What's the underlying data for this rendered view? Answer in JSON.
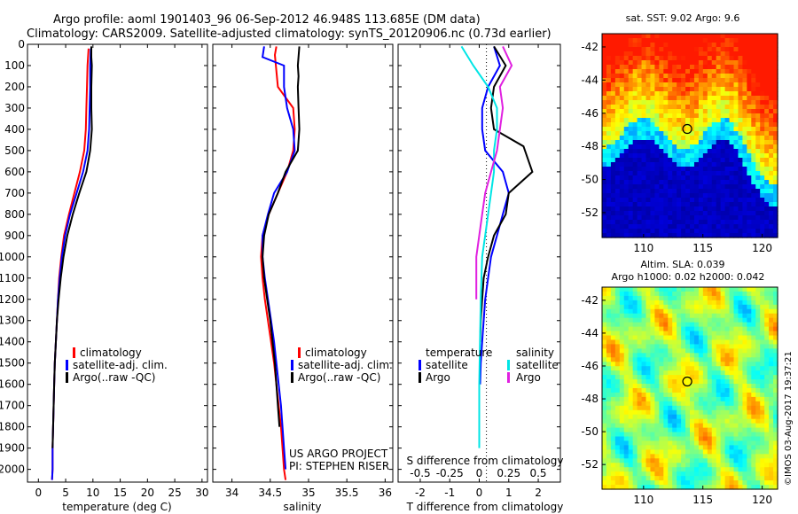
{
  "figure": {
    "title_line1": "Argo profile: aoml 1901403_96 06-Sep-2012 46.948S 113.685E (DM data)",
    "title_line2": "Climatology: CARS2009. Satellite-adjusted climatology: synTS_20120906.nc (0.73d earlier)",
    "credit": "US ARGO PROJECT",
    "pi": "PI: STEPHEN RISER",
    "stamp": "©IMOS 03-Aug-2017 19:37:21"
  },
  "colors": {
    "climatology": "#ff0000",
    "satellite_adj": "#0000ff",
    "argo": "#000000",
    "sal_satellite": "#00e5e5",
    "sal_argo": "#e020e0"
  },
  "chart_data": [
    {
      "id": "temperature",
      "type": "line",
      "xlabel": "temperature (deg C)",
      "xlim": [
        -2,
        31
      ],
      "xticks": [
        0,
        5,
        10,
        15,
        20,
        25,
        30
      ],
      "ylim": [
        0,
        2060
      ],
      "yticks": [
        0,
        100,
        200,
        300,
        400,
        500,
        600,
        700,
        800,
        900,
        1000,
        1100,
        1200,
        1300,
        1400,
        1500,
        1600,
        1700,
        1800,
        1900,
        2000
      ],
      "legend": [
        "climatology",
        "satellite-adj. clim.",
        "Argo(..raw -QC)"
      ],
      "series": [
        {
          "name": "climatology",
          "color": "#ff0000",
          "x": [
            9.2,
            9.0,
            8.9,
            8.8,
            8.7,
            8.4,
            7.6,
            6.6,
            5.6,
            4.7,
            4.2,
            3.8,
            3.6,
            3.4,
            3.2,
            3.0,
            2.9,
            2.8,
            2.7,
            2.6,
            2.6,
            2.5
          ],
          "y": [
            20,
            100,
            200,
            300,
            400,
            500,
            600,
            700,
            800,
            900,
            1000,
            1100,
            1200,
            1300,
            1400,
            1500,
            1600,
            1700,
            1800,
            1900,
            2000,
            2050
          ]
        },
        {
          "name": "satellite-adj. clim.",
          "color": "#0000ff",
          "x": [
            9.6,
            9.5,
            9.5,
            9.4,
            9.3,
            9.0,
            8.2,
            7.0,
            5.8,
            4.9,
            4.3,
            3.9,
            3.6,
            3.4,
            3.2,
            3.0,
            2.9,
            2.8,
            2.7,
            2.6,
            2.6,
            2.5
          ],
          "y": [
            20,
            100,
            200,
            300,
            400,
            500,
            600,
            700,
            800,
            900,
            1000,
            1100,
            1200,
            1300,
            1400,
            1500,
            1600,
            1700,
            1800,
            1900,
            2000,
            2050
          ]
        },
        {
          "name": "Argo(..raw -QC)",
          "color": "#000000",
          "x": [
            9.7,
            9.7,
            9.8,
            9.7,
            9.7,
            9.8,
            9.5,
            8.8,
            7.5,
            6.3,
            5.3,
            4.6,
            4.1,
            3.7,
            3.4,
            3.2,
            3.0,
            2.9,
            2.8,
            2.7,
            2.6
          ],
          "y": [
            10,
            60,
            100,
            200,
            300,
            400,
            500,
            600,
            700,
            800,
            900,
            1000,
            1100,
            1200,
            1300,
            1400,
            1500,
            1600,
            1700,
            1800,
            1900
          ]
        }
      ]
    },
    {
      "id": "salinity",
      "type": "line",
      "xlabel": "salinity",
      "xlim": [
        33.75,
        36.1
      ],
      "xticks": [
        34,
        34.5,
        35,
        35.5,
        36
      ],
      "ylim": [
        0,
        2060
      ],
      "legend": [
        "climatology",
        "satellite-adj. clim.",
        "Argo(..raw -QC)"
      ],
      "series": [
        {
          "name": "climatology",
          "color": "#ff0000",
          "x": [
            34.58,
            34.56,
            34.6,
            34.8,
            34.82,
            34.8,
            34.72,
            34.6,
            34.48,
            34.4,
            34.38,
            34.4,
            34.43,
            34.47,
            34.51,
            34.55,
            34.58,
            34.61,
            34.64,
            34.66,
            34.68,
            34.7
          ],
          "y": [
            10,
            50,
            200,
            300,
            400,
            500,
            600,
            700,
            800,
            900,
            1000,
            1100,
            1200,
            1300,
            1400,
            1500,
            1600,
            1700,
            1800,
            1900,
            2000,
            2050
          ]
        },
        {
          "name": "satellite-adj. clim.",
          "color": "#0000ff",
          "x": [
            34.42,
            34.4,
            34.68,
            34.68,
            34.72,
            34.8,
            34.82,
            34.72,
            34.55,
            34.47,
            34.4,
            34.4,
            34.43,
            34.47,
            34.51,
            34.55,
            34.58,
            34.61,
            34.64,
            34.66,
            34.68,
            34.7
          ],
          "y": [
            10,
            60,
            100,
            200,
            300,
            400,
            500,
            600,
            700,
            800,
            900,
            1000,
            1100,
            1200,
            1300,
            1400,
            1500,
            1600,
            1700,
            1800,
            1900,
            2000
          ]
        },
        {
          "name": "Argo(..raw -QC)",
          "color": "#000000",
          "x": [
            34.88,
            34.86,
            34.87,
            34.86,
            34.87,
            34.88,
            34.86,
            34.7,
            34.6,
            34.48,
            34.42,
            34.4,
            34.42,
            34.46,
            34.5,
            34.53,
            34.56,
            34.58,
            34.6,
            34.62
          ],
          "y": [
            10,
            100,
            150,
            200,
            300,
            400,
            500,
            600,
            700,
            800,
            900,
            1000,
            1100,
            1200,
            1300,
            1400,
            1500,
            1600,
            1700,
            1800
          ]
        }
      ]
    },
    {
      "id": "differences",
      "type": "line",
      "xlabel": "T difference from climatology",
      "xlabel_top": "S difference from climatology",
      "xlim": [
        -2.75,
        2.75
      ],
      "xticks": [
        -2,
        -1,
        0,
        1,
        2
      ],
      "xticks_top": [
        -0.5,
        -0.25,
        0,
        0.25,
        0.5
      ],
      "ylim": [
        0,
        2060
      ],
      "legend_temperature": [
        "temperature",
        "satellite",
        "Argo"
      ],
      "legend_salinity": [
        "salinity",
        "satellite",
        "Argo"
      ],
      "series": [
        {
          "name": "temperature satellite",
          "color": "#0000ff",
          "x": [
            0.5,
            0.7,
            0.3,
            0.1,
            0.1,
            0.2,
            0.8,
            1.0,
            0.8,
            0.6,
            0.4,
            0.3,
            0.2,
            0.15,
            0.1,
            0.05,
            0.03
          ],
          "y": [
            10,
            100,
            200,
            300,
            400,
            500,
            600,
            700,
            800,
            900,
            1000,
            1100,
            1200,
            1300,
            1400,
            1500,
            1600
          ]
        },
        {
          "name": "temperature Argo",
          "color": "#000000",
          "x": [
            0.5,
            0.9,
            0.5,
            0.4,
            0.5,
            1.5,
            1.8,
            1.0,
            0.9,
            0.5,
            0.3,
            0.15,
            0.1,
            0.05,
            0.03
          ],
          "y": [
            10,
            100,
            200,
            300,
            400,
            480,
            600,
            700,
            800,
            900,
            1000,
            1100,
            1200,
            1300,
            1400
          ]
        },
        {
          "name": "salinity satellite",
          "color": "#00e5e5",
          "x": [
            -0.6,
            -0.2,
            0.3,
            0.6,
            0.6,
            0.5,
            0.5,
            0.4,
            0.3,
            0.2,
            0.1,
            0.05,
            0.0,
            0.0
          ],
          "y": [
            10,
            100,
            200,
            300,
            400,
            500,
            600,
            700,
            800,
            900,
            1000,
            1200,
            1600,
            1900
          ]
        },
        {
          "name": "salinity Argo",
          "color": "#e020e0",
          "x": [
            0.8,
            1.1,
            0.7,
            0.8,
            0.7,
            0.6,
            0.4,
            0.2,
            0.1,
            0.0,
            -0.1,
            -0.1
          ],
          "y": [
            10,
            100,
            200,
            300,
            400,
            500,
            600,
            700,
            800,
            900,
            1000,
            1200
          ]
        }
      ]
    },
    {
      "id": "sst-map",
      "type": "heatmap",
      "title": "sat. SST: 9.02 Argo: 9.6",
      "xlim": [
        106.5,
        121.3
      ],
      "xticks": [
        110,
        115,
        120
      ],
      "ylim": [
        -53.5,
        -41.2
      ],
      "yticks": [
        -42,
        -44,
        -46,
        -48,
        -50,
        -52
      ],
      "marker": {
        "lon": 113.685,
        "lat": -46.948
      }
    },
    {
      "id": "sla-map",
      "type": "heatmap",
      "title_line1": "Altim. SLA: 0.039",
      "title_line2": "Argo h1000: 0.02 h2000: 0.042",
      "xlim": [
        106.5,
        121.3
      ],
      "xticks": [
        110,
        115,
        120
      ],
      "ylim": [
        -53.5,
        -41.2
      ],
      "yticks": [
        -42,
        -44,
        -46,
        -48,
        -50,
        -52
      ],
      "marker": {
        "lon": 113.685,
        "lat": -46.948
      }
    }
  ]
}
